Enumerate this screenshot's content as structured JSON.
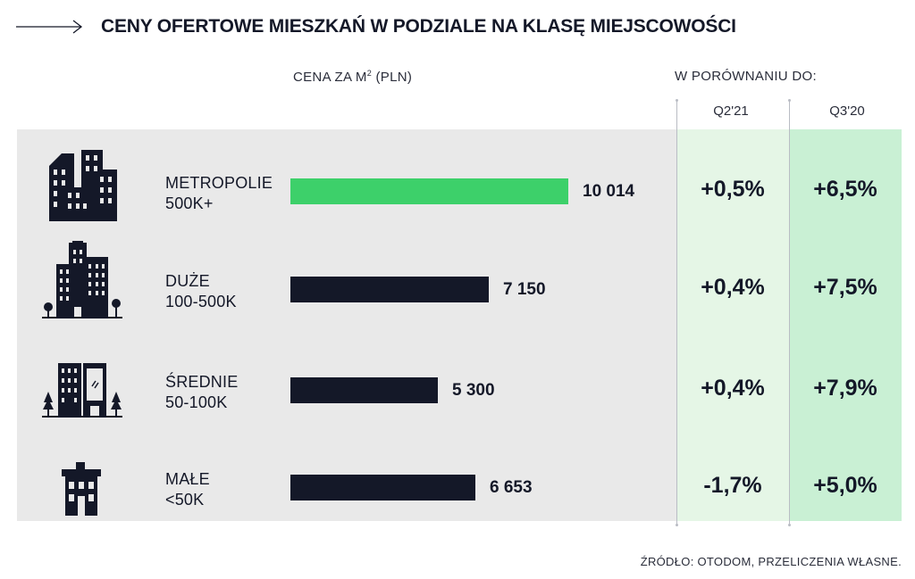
{
  "title": "CENY OFERTOWE MIESZKAŃ W PODZIALE NA KLASĘ MIEJSCOWOŚCI",
  "column_price_label": "CENA ZA M",
  "column_price_sup": "2",
  "column_price_unit": " (PLN)",
  "column_compare_label": "W PORÓWNANIU DO:",
  "compare_headers": [
    "Q2'21",
    "Q3'20"
  ],
  "source": "ŹRÓDŁO: OTODOM, PRZELICZENIA WŁASNE.",
  "colors": {
    "highlight_bar": "#3dd06a",
    "bar": "#141828",
    "panel": "#e9e9e9",
    "compare_bg_1": "#e5f6e6",
    "compare_bg_2": "#c9f0d4"
  },
  "rows": [
    {
      "name": "METROPOLIE",
      "size": "500K+",
      "icon": "skyscrapers-icon",
      "value_label": "10 014",
      "q2": "+0,5%",
      "q3": "+6,5%"
    },
    {
      "name": "DUŻE",
      "size": "100-500K",
      "icon": "city-buildings-icon",
      "value_label": "7 150",
      "q2": "+0,4%",
      "q3": "+7,5%"
    },
    {
      "name": "ŚREDNIE",
      "size": "50-100K",
      "icon": "town-buildings-icon",
      "value_label": "5 300",
      "q2": "+0,4%",
      "q3": "+7,9%"
    },
    {
      "name": "MAŁE",
      "size": "<50K",
      "icon": "small-house-icon",
      "value_label": "6 653",
      "q2": "-1,7%",
      "q3": "+5,0%"
    }
  ],
  "chart_data": {
    "type": "bar",
    "orientation": "horizontal",
    "title": "CENY OFERTOWE MIESZKAŃ W PODZIALE NA KLASĘ MIEJSCOWOŚCI",
    "categories": [
      "METROPOLIE 500K+",
      "DUŻE 100-500K",
      "ŚREDNIE 50-100K",
      "MAŁE <50K"
    ],
    "values": [
      10014,
      7150,
      5300,
      6653
    ],
    "highlight_index": 0,
    "xlim": [
      0,
      10014
    ],
    "grid": false,
    "change_vs": {
      "Q2'21": [
        "+0,5%",
        "+0,4%",
        "+0,4%",
        "-1,7%"
      ],
      "Q3'20": [
        "+6,5%",
        "+7,5%",
        "+7,9%",
        "+5,0%"
      ]
    }
  }
}
